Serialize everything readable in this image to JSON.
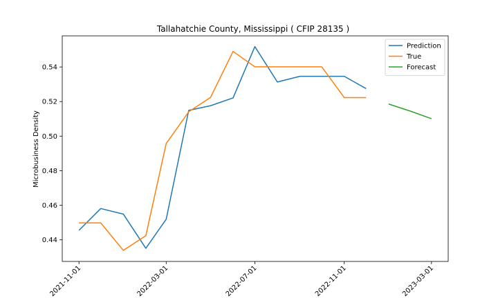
{
  "chart_data": {
    "type": "line",
    "title": "Tallahatchie County, Mississippi ( CFIP 28135 )",
    "xlabel": "",
    "ylabel": "Microbusiness Density",
    "xlim": [
      "2021-10-09",
      "2023-03-24"
    ],
    "ylim": [
      0.4275,
      0.558
    ],
    "x_ticks": [
      "2021-11-01",
      "2022-03-01",
      "2022-07-01",
      "2022-11-01",
      "2023-03-01"
    ],
    "y_ticks": [
      0.44,
      0.46,
      0.48,
      0.5,
      0.52,
      0.54
    ],
    "legend_position": "upper right",
    "grid": false,
    "series": [
      {
        "name": "Prediction",
        "color": "#1f77b4",
        "x": [
          "2021-11-01",
          "2021-12-01",
          "2022-01-01",
          "2022-02-01",
          "2022-03-01",
          "2022-04-01",
          "2022-05-01",
          "2022-06-01",
          "2022-07-01",
          "2022-08-01",
          "2022-09-01",
          "2022-10-01",
          "2022-11-01",
          "2022-12-01"
        ],
        "y": [
          0.4455,
          0.4581,
          0.4549,
          0.4351,
          0.4519,
          0.5149,
          0.5176,
          0.5221,
          0.5518,
          0.5313,
          0.5346,
          0.5346,
          0.5346,
          0.5275
        ]
      },
      {
        "name": "True",
        "color": "#ff7f0e",
        "x": [
          "2021-11-01",
          "2021-12-01",
          "2022-01-01",
          "2022-02-01",
          "2022-03-01",
          "2022-04-01",
          "2022-05-01",
          "2022-06-01",
          "2022-07-01",
          "2022-08-01",
          "2022-09-01",
          "2022-10-01",
          "2022-11-01",
          "2022-12-01"
        ],
        "y": [
          0.4498,
          0.4498,
          0.4339,
          0.4424,
          0.4957,
          0.5141,
          0.5224,
          0.549,
          0.5401,
          0.5401,
          0.5401,
          0.5401,
          0.5223,
          0.5223
        ]
      },
      {
        "name": "Forecast",
        "color": "#2ca02c",
        "x": [
          "2023-01-01",
          "2023-02-01",
          "2023-03-01"
        ],
        "y": [
          0.5186,
          0.5143,
          0.5101
        ]
      }
    ]
  }
}
